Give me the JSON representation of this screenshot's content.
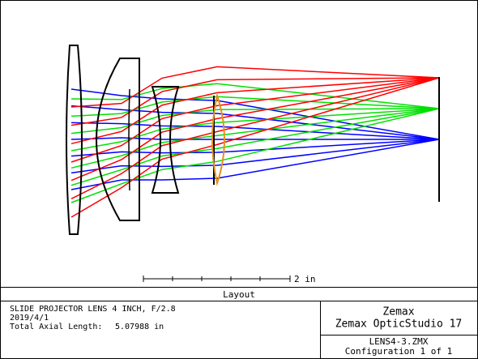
{
  "scale_label": "2 in",
  "panel_title": "Layout",
  "info": {
    "title": "SLIDE PROJECTOR LENS 4 INCH, F/2.8",
    "date": "2019/4/1",
    "length_label": "Total Axial Length:",
    "length_value": "5.07988 in"
  },
  "brand": {
    "name": "Zemax",
    "product": "Zemax OpticStudio 17"
  },
  "file": {
    "name": "LENS4-3.ZMX",
    "configuration": "Configuration 1 of 1"
  }
}
